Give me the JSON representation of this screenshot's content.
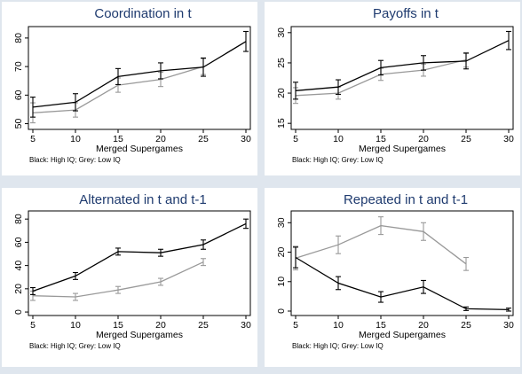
{
  "figure": {
    "background": "#dfe6ee",
    "panel_background": "#ffffff",
    "title_color": "#1f3b6f"
  },
  "chart_data": [
    {
      "type": "line",
      "title": "Coordination in t",
      "xlabel": "Merged Supergames",
      "ylabel": "",
      "note": "Black: High IQ; Grey: Low IQ",
      "xlim": [
        5,
        30
      ],
      "ylim": [
        48,
        84
      ],
      "xticks": [
        5,
        10,
        15,
        20,
        25,
        30
      ],
      "yticks": [
        50,
        60,
        70,
        80
      ],
      "series": [
        {
          "color": "#000000",
          "x": [
            5,
            10,
            15,
            20,
            25,
            30
          ],
          "y": [
            55.8,
            57.5,
            66.5,
            68.5,
            69.8,
            78.8
          ],
          "err": [
            3.5,
            3.0,
            2.8,
            2.8,
            3.2,
            3.5
          ]
        },
        {
          "color": "#999999",
          "x": [
            5,
            10,
            15,
            20,
            25
          ],
          "y": [
            53.8,
            54.8,
            63.5,
            65.5,
            70.0
          ],
          "err": [
            3.5,
            2.5,
            2.5,
            2.5,
            2.8
          ]
        }
      ]
    },
    {
      "type": "line",
      "title": "Payoffs in t",
      "xlabel": "Merged Supergames",
      "ylabel": "",
      "note": "Black: High IQ; Grey: Low IQ",
      "xlim": [
        5,
        30
      ],
      "ylim": [
        14,
        31
      ],
      "xticks": [
        5,
        10,
        15,
        20,
        25,
        30
      ],
      "yticks": [
        15,
        20,
        25,
        30
      ],
      "series": [
        {
          "color": "#000000",
          "x": [
            5,
            10,
            15,
            20,
            25,
            30
          ],
          "y": [
            20.4,
            21.0,
            24.2,
            25.0,
            25.3,
            28.7
          ],
          "err": [
            1.4,
            1.2,
            1.2,
            1.2,
            1.3,
            1.5
          ]
        },
        {
          "color": "#999999",
          "x": [
            5,
            10,
            15,
            20,
            25
          ],
          "y": [
            19.6,
            20.0,
            23.1,
            23.8,
            25.5
          ],
          "err": [
            1.3,
            1.0,
            1.0,
            1.0,
            1.2
          ]
        }
      ]
    },
    {
      "type": "line",
      "title": "Alternated in t and t-1",
      "xlabel": "Merged Supergames",
      "ylabel": "",
      "note": "Black: High IQ; Grey: Low IQ",
      "xlim": [
        5,
        30
      ],
      "ylim": [
        -3,
        87
      ],
      "xticks": [
        5,
        10,
        15,
        20,
        25,
        30
      ],
      "yticks": [
        0,
        20,
        40,
        60,
        80
      ],
      "series": [
        {
          "color": "#000000",
          "x": [
            5,
            10,
            15,
            20,
            25,
            30
          ],
          "y": [
            18,
            31,
            52,
            51,
            58,
            76
          ],
          "err": [
            3,
            3,
            3,
            3,
            4,
            4
          ]
        },
        {
          "color": "#999999",
          "x": [
            5,
            10,
            15,
            20,
            25
          ],
          "y": [
            14,
            13,
            19,
            26,
            43
          ],
          "err": [
            4,
            3,
            3,
            3,
            3
          ]
        }
      ]
    },
    {
      "type": "line",
      "title": "Repeated in t and t-1",
      "xlabel": "Merged Supergames",
      "ylabel": "",
      "note": "Black: High IQ; Grey: Low IQ",
      "xlim": [
        5,
        30
      ],
      "ylim": [
        -1.5,
        34
      ],
      "xticks": [
        5,
        10,
        15,
        20,
        25,
        30
      ],
      "yticks": [
        0,
        10,
        20,
        30
      ],
      "series": [
        {
          "color": "#000000",
          "x": [
            5,
            10,
            15,
            20,
            25,
            30
          ],
          "y": [
            18.2,
            9.5,
            4.8,
            8.2,
            0.8,
            0.5
          ],
          "err": [
            3.5,
            2.2,
            1.8,
            2.2,
            0.6,
            0.5
          ]
        },
        {
          "color": "#999999",
          "x": [
            5,
            10,
            15,
            20,
            25
          ],
          "y": [
            18.0,
            22.5,
            29.0,
            27.0,
            16.0
          ],
          "err": [
            4.0,
            3.0,
            3.0,
            3.0,
            2.2
          ]
        }
      ]
    }
  ]
}
